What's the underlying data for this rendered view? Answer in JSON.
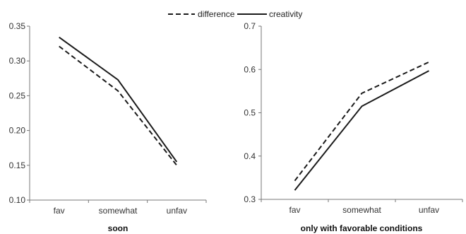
{
  "legend": {
    "placement": "top-center",
    "items": [
      {
        "label": "difference",
        "style": "dashed"
      },
      {
        "label": "creativity",
        "style": "solid"
      }
    ]
  },
  "colors": {
    "line": "#1a1a1a",
    "axis": "#777777",
    "text": "#333333"
  },
  "chart_data": [
    {
      "type": "line",
      "title": "soon",
      "xlabel": "",
      "ylabel": "",
      "categories": [
        "fav",
        "somewhat",
        "unfav"
      ],
      "ylim": [
        0.1,
        0.35
      ],
      "yticks": [
        "0.10",
        "0.15",
        "0.20",
        "0.25",
        "0.30",
        "0.35"
      ],
      "grid": false,
      "series": [
        {
          "name": "difference",
          "style": "dashed",
          "values": [
            0.321,
            0.257,
            0.15
          ]
        },
        {
          "name": "creativity",
          "style": "solid",
          "values": [
            0.334,
            0.273,
            0.155
          ]
        }
      ]
    },
    {
      "type": "line",
      "title": "only with favorable conditions",
      "xlabel": "",
      "ylabel": "",
      "categories": [
        "fav",
        "somewhat",
        "unfav"
      ],
      "ylim": [
        0.3,
        0.7
      ],
      "yticks": [
        "0.3",
        "0.4",
        "0.5",
        "0.6",
        "0.7"
      ],
      "grid": false,
      "series": [
        {
          "name": "difference",
          "style": "dashed",
          "values": [
            0.343,
            0.545,
            0.617
          ]
        },
        {
          "name": "creativity",
          "style": "solid",
          "values": [
            0.321,
            0.515,
            0.597
          ]
        }
      ]
    }
  ]
}
